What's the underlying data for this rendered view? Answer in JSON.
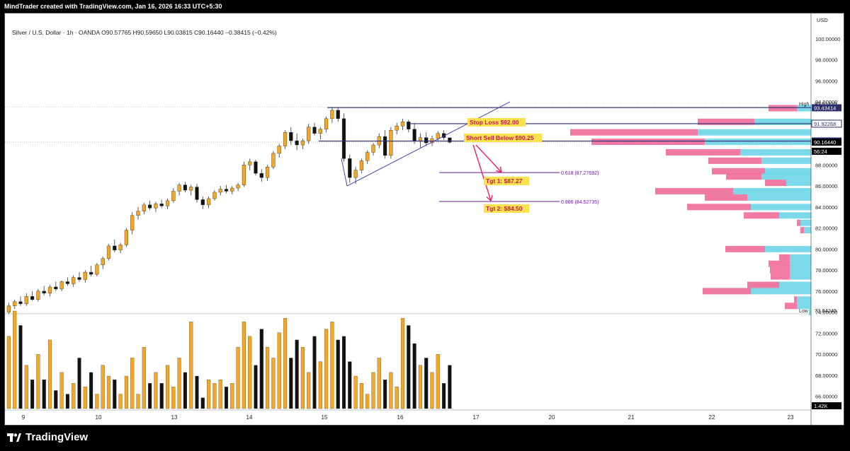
{
  "header": {
    "attribution": "MindTrader created with TradingView.com, Jan 16, 2026 16:33 UTC+5:30"
  },
  "legend": {
    "text": "Silver / U.S. Dollar · 1h · OANDA  O90.57765  H90.59650  L90.03815  C90.16440  −0.38415 (−0.42%)"
  },
  "footer": {
    "brand": "TradingView"
  },
  "chart_data": {
    "type": "candlestick",
    "currency": "USD",
    "y_ticks": [
      "100.00000",
      "98.00000",
      "96.00000",
      "94.00000",
      "88.00000",
      "86.00000",
      "84.00000",
      "82.00000",
      "80.00000",
      "78.00000",
      "76.00000",
      "74.00000",
      "72.00000",
      "70.00000",
      "68.00000",
      "66.00000"
    ],
    "y_tick_values": [
      100,
      98,
      96,
      94,
      88,
      86,
      84,
      82,
      80,
      78,
      76,
      74,
      72,
      70,
      68,
      66
    ],
    "x_ticks": [
      "9",
      "10",
      "13",
      "14",
      "15",
      "16",
      "17",
      "20",
      "21",
      "22",
      "23"
    ],
    "y_range": [
      64.7,
      102.0
    ],
    "price_tags": [
      {
        "label": "High",
        "value": "93.51410",
        "price": 93.5141,
        "style": "plain"
      },
      {
        "label": "",
        "value": "93.43414",
        "price": 93.43414,
        "style": "navy"
      },
      {
        "label": "",
        "value": "91.92268",
        "price": 91.92268,
        "style": "navyoutline"
      },
      {
        "label": "",
        "value": "90.27382",
        "price": 90.27382,
        "style": "navy"
      },
      {
        "label": "",
        "value": "90.16440",
        "price": 90.1644,
        "style": "black"
      },
      {
        "label": "",
        "value": "56:24",
        "price": 89.3,
        "style": "black"
      },
      {
        "label": "Low",
        "value": "73.84245",
        "price": 73.84245,
        "style": "plain"
      },
      {
        "label": "",
        "value": "1.42K",
        "price": 65.1,
        "style": "black"
      }
    ],
    "annotations": {
      "stop_loss": "Stop Loss $92.00",
      "short_sell": "Short Sell Below $90.25",
      "tgt1": "Tgt 1: $87.27",
      "tgt2": "Tgt 2: $84.50",
      "fib1": "0.618 (87.27692)",
      "fib2": "0.886 (84.52735)"
    },
    "fib_levels": [
      87.27692,
      84.52735
    ],
    "last_close": 90.1644,
    "volume_profile": [
      {
        "price": 93.4,
        "up": 20,
        "down": 40
      },
      {
        "price": 92.1,
        "up": 80,
        "down": 80
      },
      {
        "price": 91.1,
        "up": 160,
        "down": 180
      },
      {
        "price": 90.2,
        "up": 150,
        "down": 160
      },
      {
        "price": 89.2,
        "up": 100,
        "down": 105
      },
      {
        "price": 88.4,
        "up": 70,
        "down": 75
      },
      {
        "price": 87.4,
        "up": 65,
        "down": 75
      },
      {
        "price": 86.9,
        "up": 70,
        "down": 50
      },
      {
        "price": 86.3,
        "up": 35,
        "down": 30
      },
      {
        "price": 85.5,
        "up": 110,
        "down": 110
      },
      {
        "price": 84.9,
        "up": 90,
        "down": 60
      },
      {
        "price": 84.0,
        "up": 85,
        "down": 90
      },
      {
        "price": 83.2,
        "up": 45,
        "down": 50
      },
      {
        "price": 82.5,
        "up": 15,
        "down": 5
      },
      {
        "price": 81.8,
        "up": 10,
        "down": 5
      },
      {
        "price": 80.0,
        "up": 65,
        "down": 56
      },
      {
        "price": 79.2,
        "up": 30,
        "down": 15
      },
      {
        "price": 78.6,
        "up": 30,
        "down": 30
      },
      {
        "price": 78.0,
        "up": 30,
        "down": 28
      },
      {
        "price": 77.4,
        "up": 30,
        "down": 27
      },
      {
        "price": 76.6,
        "up": 45,
        "down": 45
      },
      {
        "price": 76.0,
        "up": 85,
        "down": 68
      },
      {
        "price": 75.2,
        "up": 20,
        "down": 4
      },
      {
        "price": 74.6,
        "up": 20,
        "down": 17
      },
      {
        "price": 74.0,
        "up": 3,
        "down": 0
      }
    ],
    "ohlc": [
      [
        74.0,
        74.9,
        73.84,
        74.6
      ],
      [
        74.6,
        75.2,
        74.3,
        75.0
      ],
      [
        75.0,
        75.5,
        74.6,
        74.8
      ],
      [
        74.8,
        75.8,
        74.6,
        75.5
      ],
      [
        75.5,
        76.0,
        75.1,
        75.2
      ],
      [
        75.2,
        76.2,
        75.0,
        76.0
      ],
      [
        76.0,
        76.5,
        75.6,
        75.8
      ],
      [
        75.8,
        76.6,
        75.5,
        76.4
      ],
      [
        76.4,
        76.9,
        76.0,
        76.2
      ],
      [
        76.2,
        77.0,
        76.0,
        76.9
      ],
      [
        76.9,
        77.3,
        76.5,
        76.7
      ],
      [
        76.7,
        77.5,
        76.4,
        77.3
      ],
      [
        77.3,
        77.8,
        76.9,
        77.1
      ],
      [
        77.1,
        78.0,
        76.8,
        77.8
      ],
      [
        77.8,
        78.4,
        77.4,
        77.6
      ],
      [
        77.6,
        78.7,
        77.4,
        78.5
      ],
      [
        78.5,
        79.3,
        78.1,
        79.1
      ],
      [
        79.1,
        80.5,
        78.9,
        80.3
      ],
      [
        80.3,
        80.9,
        79.7,
        79.9
      ],
      [
        79.9,
        80.6,
        79.6,
        80.4
      ],
      [
        80.4,
        82.0,
        80.2,
        81.8
      ],
      [
        81.8,
        83.5,
        81.4,
        83.2
      ],
      [
        83.2,
        84.0,
        82.8,
        83.6
      ],
      [
        83.6,
        84.4,
        83.3,
        84.2
      ],
      [
        84.2,
        84.6,
        83.7,
        83.9
      ],
      [
        83.9,
        84.5,
        83.5,
        84.3
      ],
      [
        84.3,
        84.7,
        83.9,
        84.1
      ],
      [
        84.1,
        84.8,
        83.8,
        84.6
      ],
      [
        84.6,
        85.8,
        84.4,
        85.5
      ],
      [
        85.5,
        86.3,
        85.1,
        86.1
      ],
      [
        86.1,
        86.4,
        85.4,
        85.6
      ],
      [
        85.6,
        86.1,
        85.1,
        85.9
      ],
      [
        85.9,
        86.2,
        84.4,
        84.7
      ],
      [
        84.7,
        85.0,
        83.8,
        84.2
      ],
      [
        84.2,
        85.0,
        83.9,
        84.8
      ],
      [
        84.8,
        85.6,
        84.6,
        85.4
      ],
      [
        85.4,
        86.0,
        85.1,
        85.7
      ],
      [
        85.7,
        86.1,
        85.3,
        85.5
      ],
      [
        85.5,
        86.0,
        85.2,
        85.8
      ],
      [
        85.8,
        86.3,
        85.5,
        86.1
      ],
      [
        86.1,
        88.3,
        85.9,
        88.0
      ],
      [
        88.0,
        88.6,
        87.5,
        88.3
      ],
      [
        88.3,
        88.5,
        87.0,
        87.2
      ],
      [
        87.2,
        87.6,
        86.4,
        86.8
      ],
      [
        86.8,
        88.0,
        86.5,
        87.8
      ],
      [
        87.8,
        89.3,
        87.6,
        89.1
      ],
      [
        89.1,
        90.0,
        88.7,
        89.8
      ],
      [
        89.8,
        91.3,
        89.5,
        91.1
      ],
      [
        91.1,
        91.6,
        89.9,
        90.3
      ],
      [
        90.3,
        91.0,
        89.4,
        89.9
      ],
      [
        89.9,
        90.5,
        89.5,
        90.3
      ],
      [
        90.3,
        91.9,
        90.0,
        91.6
      ],
      [
        91.6,
        92.0,
        90.8,
        91.0
      ],
      [
        91.0,
        91.6,
        90.4,
        91.4
      ],
      [
        91.4,
        92.6,
        91.1,
        92.4
      ],
      [
        92.4,
        93.5,
        92.0,
        93.2
      ],
      [
        93.2,
        93.5,
        92.1,
        92.4
      ],
      [
        92.4,
        92.9,
        88.3,
        88.6
      ],
      [
        88.6,
        89.0,
        86.3,
        86.8
      ],
      [
        86.8,
        87.8,
        86.2,
        87.5
      ],
      [
        87.5,
        88.6,
        87.2,
        88.4
      ],
      [
        88.4,
        89.4,
        88.1,
        89.2
      ],
      [
        89.2,
        90.1,
        88.9,
        89.9
      ],
      [
        89.9,
        91.0,
        89.6,
        90.7
      ],
      [
        90.7,
        91.3,
        88.6,
        88.9
      ],
      [
        88.9,
        91.6,
        88.6,
        91.3
      ],
      [
        91.3,
        92.0,
        90.9,
        91.7
      ],
      [
        91.7,
        92.4,
        91.3,
        92.1
      ],
      [
        92.1,
        92.3,
        91.1,
        91.4
      ],
      [
        91.4,
        92.0,
        90.0,
        90.3
      ],
      [
        90.3,
        91.0,
        89.6,
        90.6
      ],
      [
        90.6,
        91.1,
        89.8,
        90.1
      ],
      [
        90.1,
        90.8,
        89.8,
        90.5
      ],
      [
        90.5,
        91.2,
        90.2,
        91.0
      ],
      [
        91.0,
        91.3,
        90.4,
        90.6
      ],
      [
        90.58,
        90.6,
        90.04,
        90.16
      ]
    ],
    "volumes": [
      68,
      75,
      71,
      60,
      56,
      63,
      56,
      67,
      53,
      58,
      52,
      55,
      62,
      54,
      58,
      52,
      60,
      57,
      56,
      52,
      57,
      62,
      52,
      65,
      55,
      58,
      55,
      60,
      54,
      62,
      58,
      72,
      57,
      51,
      56,
      55,
      56,
      54,
      55,
      65,
      72,
      68,
      60,
      70,
      65,
      62,
      69,
      73,
      62,
      67,
      65,
      58,
      68,
      61,
      70,
      72,
      67,
      68,
      61,
      57,
      55,
      52,
      58,
      62,
      56,
      58,
      54,
      73,
      71,
      66,
      60,
      62,
      58,
      63,
      55,
      60
    ]
  }
}
